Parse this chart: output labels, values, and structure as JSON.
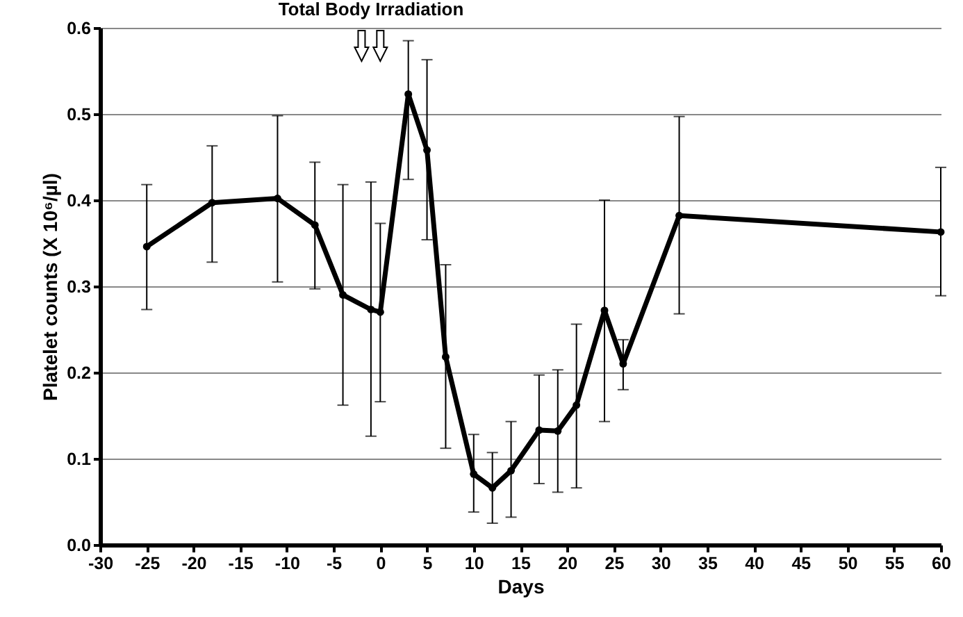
{
  "chart_data": {
    "type": "line",
    "xlabel": "Days",
    "ylabel": "Platelet counts (X 10⁶/µl)",
    "annotations": [
      "Total Body Irradiation"
    ],
    "x": [
      -25,
      -18,
      -11,
      -7,
      -4,
      -1,
      0,
      3,
      5,
      7,
      10,
      12,
      14,
      17,
      19,
      21,
      24,
      26,
      32,
      60
    ],
    "series": [
      {
        "color": "#000000",
        "values": [
          0.346,
          0.397,
          0.402,
          0.371,
          0.29,
          0.273,
          0.27,
          0.523,
          0.458,
          0.218,
          0.082,
          0.066,
          0.086,
          0.133,
          0.132,
          0.162,
          0.272,
          0.21,
          0.382,
          0.363
        ],
        "errors": [
          [
            0.273,
            0.418
          ],
          [
            0.328,
            0.463
          ],
          [
            0.305,
            0.498
          ],
          [
            0.297,
            0.444
          ],
          [
            0.162,
            0.418
          ],
          [
            0.126,
            0.421
          ],
          [
            0.166,
            0.373
          ],
          [
            0.424,
            0.585
          ],
          [
            0.354,
            0.563
          ],
          [
            0.112,
            0.325
          ],
          [
            0.038,
            0.128
          ],
          [
            0.025,
            0.107
          ],
          [
            0.032,
            0.143
          ],
          [
            0.071,
            0.197
          ],
          [
            0.061,
            0.203
          ],
          [
            0.066,
            0.256
          ],
          [
            0.143,
            0.4
          ],
          [
            0.18,
            0.238
          ],
          [
            0.268,
            0.497
          ],
          [
            0.289,
            0.438
          ]
        ]
      }
    ],
    "xlim": [
      -30,
      60
    ],
    "xticks": [
      -30,
      -25,
      -20,
      -15,
      -10,
      -5,
      0,
      5,
      10,
      15,
      20,
      25,
      30,
      35,
      40,
      45,
      50,
      55,
      60
    ],
    "ylim": [
      0,
      0.6
    ],
    "yticks": [
      {
        "value": 0,
        "label": "0.0"
      },
      0.1,
      0.2,
      0.3,
      0.4,
      0.5,
      0.6
    ],
    "grid": "y",
    "marker": "circle",
    "line_style": "solid"
  }
}
